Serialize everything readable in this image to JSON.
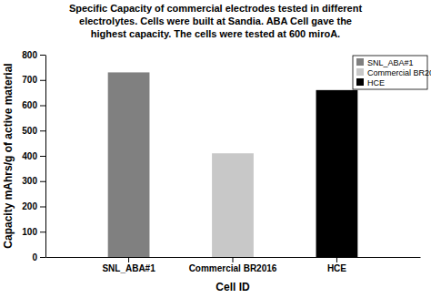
{
  "chart_data": {
    "type": "bar",
    "title": [
      "Specific Capacity of commercial electrodes tested in different",
      "electrolytes.  Cells were built at Sandia. ABA Cell gave the",
      "highest capacity. The cells were tested at 600 miroA."
    ],
    "x_label": "Cell ID",
    "y_label": "Capacity mAhrs/g of active material",
    "categories": [
      "SNL_ABA#1",
      "Commercial BR2016",
      "HCE"
    ],
    "values": [
      730,
      410,
      660
    ],
    "colors": [
      "#808080",
      "#c8c8c8",
      "#000000"
    ],
    "ylim": [
      0,
      800
    ],
    "yticks": [
      0,
      100,
      200,
      300,
      400,
      500,
      600,
      700,
      800
    ],
    "grid": false,
    "legend": "upper right"
  }
}
